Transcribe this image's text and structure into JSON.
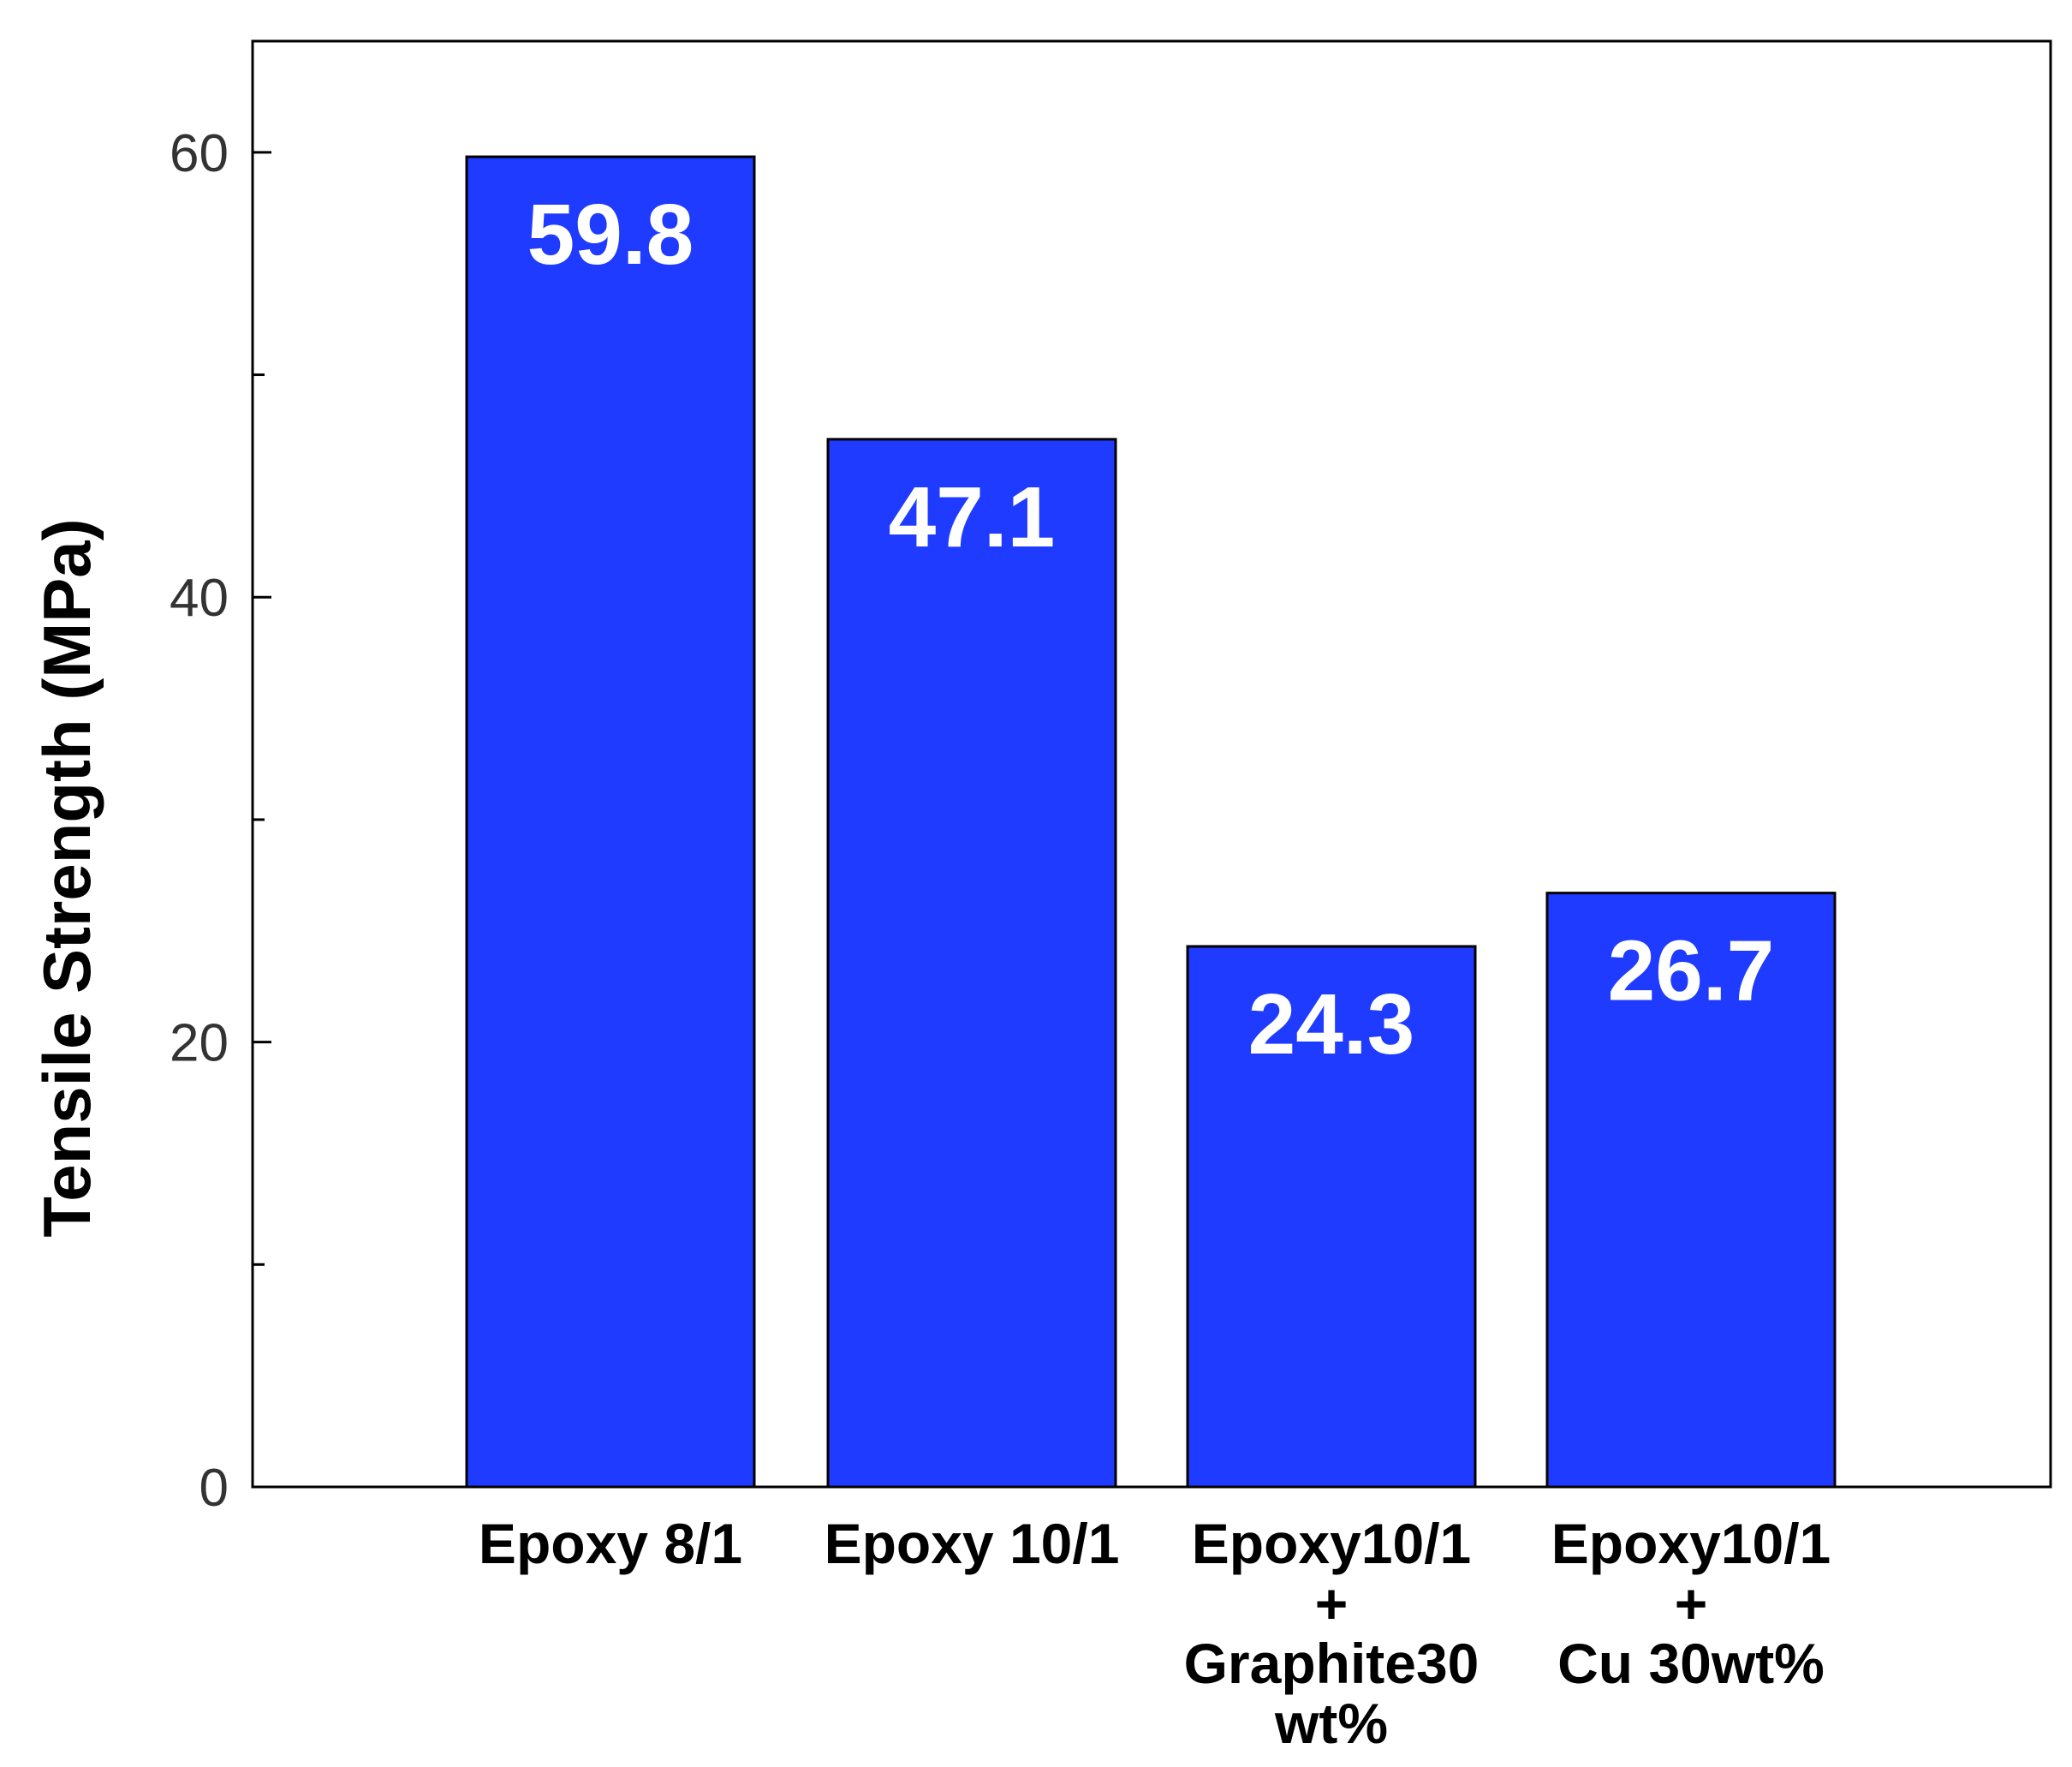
{
  "chart_data": {
    "type": "bar",
    "categories": [
      [
        "Epoxy 8/1"
      ],
      [
        "Epoxy 10/1"
      ],
      [
        "Epoxy10/1",
        "+",
        "Graphite30",
        "wt%"
      ],
      [
        "Epoxy10/1",
        "+",
        "Cu 30wt%"
      ]
    ],
    "values": [
      59.8,
      47.1,
      24.3,
      26.7
    ],
    "data_labels": [
      "59.8",
      "47.1",
      "24.3",
      "26.7"
    ],
    "title": "",
    "xlabel": "",
    "ylabel": "Tensile Strength (MPa)",
    "ylim": [
      0,
      65
    ],
    "yticks": [
      0,
      20,
      40,
      60
    ],
    "yticks_minor": [
      10,
      30,
      50
    ],
    "grid": false,
    "legend": "none",
    "colors": {
      "bar_fill": "#1f3bff",
      "bar_stroke": "#000000",
      "axis": "#000000",
      "label": "#ffffff"
    }
  }
}
